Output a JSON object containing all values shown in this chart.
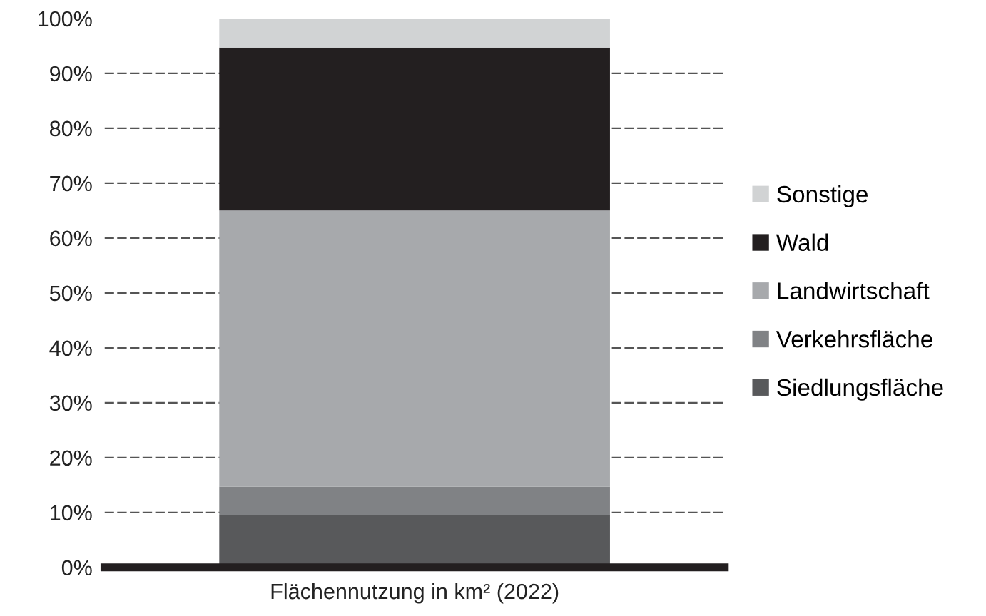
{
  "chart_data": {
    "type": "bar",
    "stacked": true,
    "categories": [
      "Flächennutzung in km² (2022)"
    ],
    "series": [
      {
        "name": "Siedlungsfläche",
        "color": "#58595b",
        "values": [
          9.5
        ]
      },
      {
        "name": "Verkehrsfläche",
        "color": "#808285",
        "values": [
          5.2
        ]
      },
      {
        "name": "Landwirtschaft",
        "color": "#a7a9ac",
        "values": [
          50.3
        ]
      },
      {
        "name": "Wald",
        "color": "#231f20",
        "values": [
          29.7
        ]
      },
      {
        "name": "Sonstige",
        "color": "#d1d3d4",
        "values": [
          5.3
        ]
      }
    ],
    "ylim": [
      0,
      100
    ],
    "yticks": [
      {
        "value": 0,
        "label": "0%"
      },
      {
        "value": 10,
        "label": "10%"
      },
      {
        "value": 20,
        "label": "20%"
      },
      {
        "value": 30,
        "label": "30%"
      },
      {
        "value": 40,
        "label": "40%"
      },
      {
        "value": 50,
        "label": "50%"
      },
      {
        "value": 60,
        "label": "60%"
      },
      {
        "value": 70,
        "label": "70%"
      },
      {
        "value": 80,
        "label": "80%"
      },
      {
        "value": 90,
        "label": "90%"
      },
      {
        "value": 100,
        "label": "100%"
      }
    ],
    "grid": "y",
    "legend": "right",
    "line_style": "dashed"
  }
}
